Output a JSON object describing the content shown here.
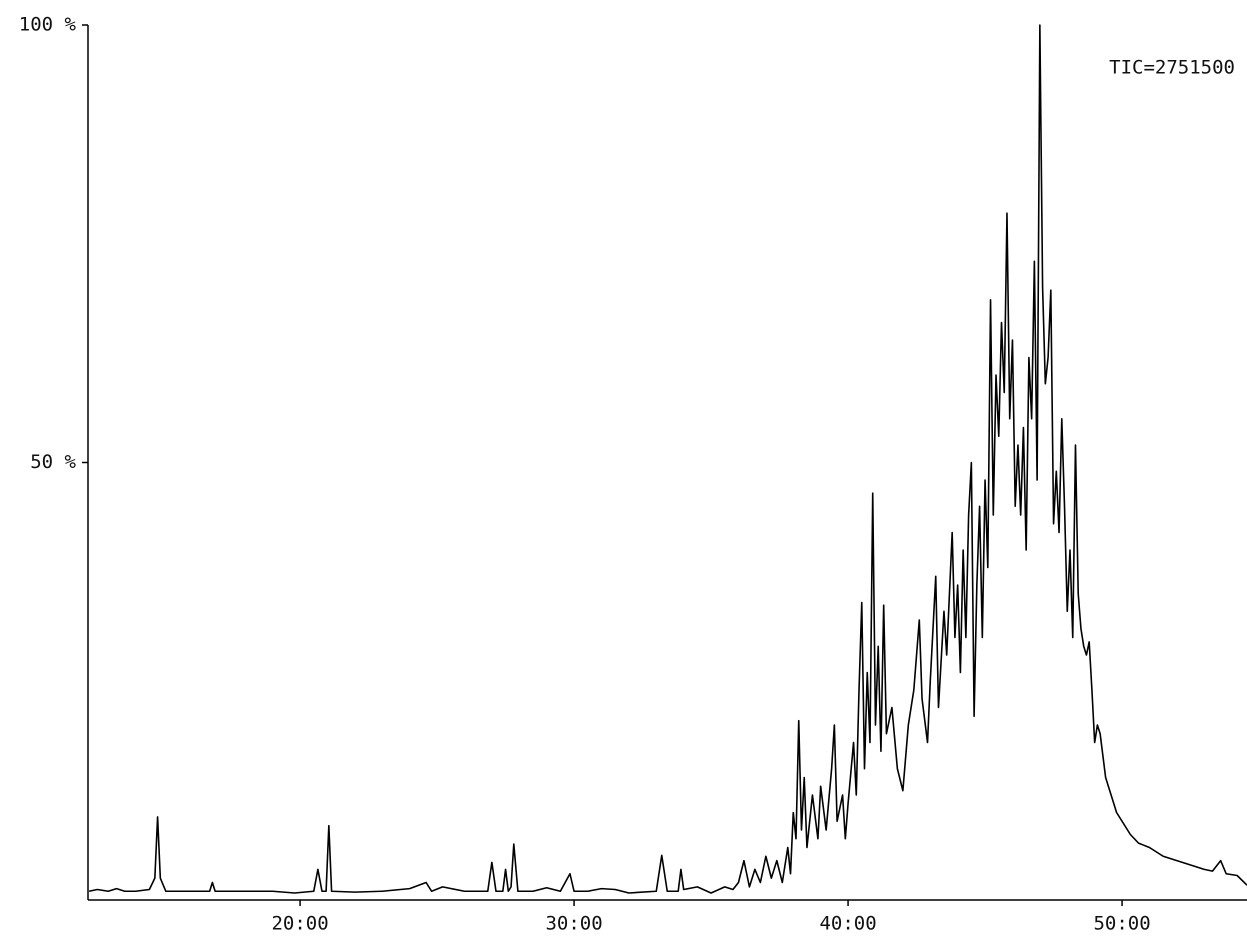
{
  "chart_data": {
    "type": "line",
    "annotation": "TIC=2751500",
    "xlim": [
      12.26,
      54.56
    ],
    "ylim": [
      0,
      100
    ],
    "xticks": [
      {
        "value": 20,
        "label": "20:00"
      },
      {
        "value": 30,
        "label": "30:00"
      },
      {
        "value": 40,
        "label": "40:00"
      },
      {
        "value": 50,
        "label": "50:00"
      }
    ],
    "yticks": [
      {
        "value": 50,
        "label": "50 %"
      },
      {
        "value": 100,
        "label": "100 %"
      }
    ],
    "x": [
      12.3,
      12.6,
      13.0,
      13.3,
      13.6,
      14.0,
      14.5,
      14.7,
      14.8,
      14.9,
      15.1,
      16.0,
      16.7,
      16.8,
      16.9,
      18,
      19,
      19.8,
      20.5,
      20.65,
      20.8,
      20.95,
      21.05,
      21.15,
      22,
      23,
      24,
      24.6,
      24.8,
      25.2,
      26,
      26.85,
      27.0,
      27.15,
      27.4,
      27.5,
      27.6,
      27.7,
      27.8,
      27.95,
      28.5,
      29.0,
      29.5,
      29.85,
      30.0,
      30.5,
      31.0,
      31.5,
      32,
      33.0,
      33.2,
      33.4,
      33.8,
      33.9,
      34.0,
      34.5,
      35,
      35.5,
      35.8,
      36.0,
      36.2,
      36.4,
      36.6,
      36.8,
      37.0,
      37.2,
      37.4,
      37.6,
      37.8,
      37.9,
      38.0,
      38.1,
      38.2,
      38.3,
      38.4,
      38.5,
      38.7,
      38.9,
      39.0,
      39.2,
      39.4,
      39.5,
      39.6,
      39.8,
      39.9,
      40.0,
      40.2,
      40.3,
      40.4,
      40.5,
      40.6,
      40.7,
      40.8,
      40.9,
      41.0,
      41.1,
      41.2,
      41.3,
      41.4,
      41.6,
      41.8,
      42.0,
      42.2,
      42.4,
      42.6,
      42.7,
      42.9,
      43.0,
      43.2,
      43.3,
      43.5,
      43.6,
      43.8,
      43.9,
      44.0,
      44.1,
      44.2,
      44.3,
      44.4,
      44.5,
      44.6,
      44.7,
      44.8,
      44.9,
      45.0,
      45.1,
      45.2,
      45.3,
      45.4,
      45.5,
      45.6,
      45.7,
      45.8,
      45.9,
      46.0,
      46.1,
      46.2,
      46.3,
      46.4,
      46.5,
      46.6,
      46.7,
      46.8,
      46.9,
      47.0,
      47.1,
      47.2,
      47.3,
      47.4,
      47.5,
      47.6,
      47.7,
      47.8,
      47.9,
      48.0,
      48.1,
      48.2,
      48.3,
      48.4,
      48.5,
      48.6,
      48.7,
      48.8,
      48.9,
      49.0,
      49.1,
      49.2,
      49.4,
      49.6,
      49.8,
      50.0,
      50.3,
      50.6,
      51.0,
      51.5,
      52.0,
      52.5,
      53.0,
      53.3,
      53.6,
      53.8,
      54.2,
      54.56
    ],
    "series": [
      {
        "color": "#000000",
        "values": [
          1,
          1.2,
          1,
          1.3,
          1,
          1,
          1.2,
          2.5,
          9.5,
          2.5,
          1,
          1,
          1,
          2,
          1,
          1,
          1,
          0.8,
          1,
          3.5,
          1,
          1,
          8.5,
          1,
          0.9,
          1,
          1.3,
          2,
          1,
          1.5,
          1,
          1,
          4.3,
          1,
          1,
          3.5,
          1,
          1.5,
          6.4,
          1,
          1,
          1.4,
          1,
          3,
          1,
          1,
          1.3,
          1.2,
          0.8,
          1,
          5.1,
          1,
          1,
          3.5,
          1.2,
          1.5,
          0.8,
          1.5,
          1.2,
          2,
          4.5,
          1.5,
          3.5,
          2,
          5,
          2.5,
          4.5,
          2,
          6,
          3,
          10,
          7,
          20.5,
          8,
          14,
          6,
          12,
          7,
          13,
          8,
          15,
          20,
          9,
          12,
          7,
          11,
          18,
          12,
          24,
          34,
          15,
          26,
          18,
          46.5,
          20,
          29,
          17,
          33.7,
          19,
          22,
          15,
          12.5,
          20,
          24,
          32,
          23,
          18,
          25,
          37,
          22,
          33,
          28,
          42,
          30,
          36,
          26,
          40,
          30,
          44,
          50,
          21,
          36,
          45,
          30,
          48,
          38,
          68.6,
          44,
          60,
          53,
          66,
          58,
          78.5,
          55,
          64,
          45,
          52,
          44,
          54,
          40,
          62,
          55,
          73,
          48,
          100,
          70,
          59,
          62,
          69.7,
          43,
          49,
          42,
          55,
          45,
          33,
          40,
          30,
          52,
          35,
          31,
          29,
          28,
          29.5,
          24,
          18,
          20,
          19,
          14,
          12,
          10,
          9,
          7.5,
          6.5,
          6,
          5,
          4.5,
          4,
          3.5,
          3.3,
          4.5,
          3,
          2.8,
          1.7
        ]
      }
    ]
  }
}
